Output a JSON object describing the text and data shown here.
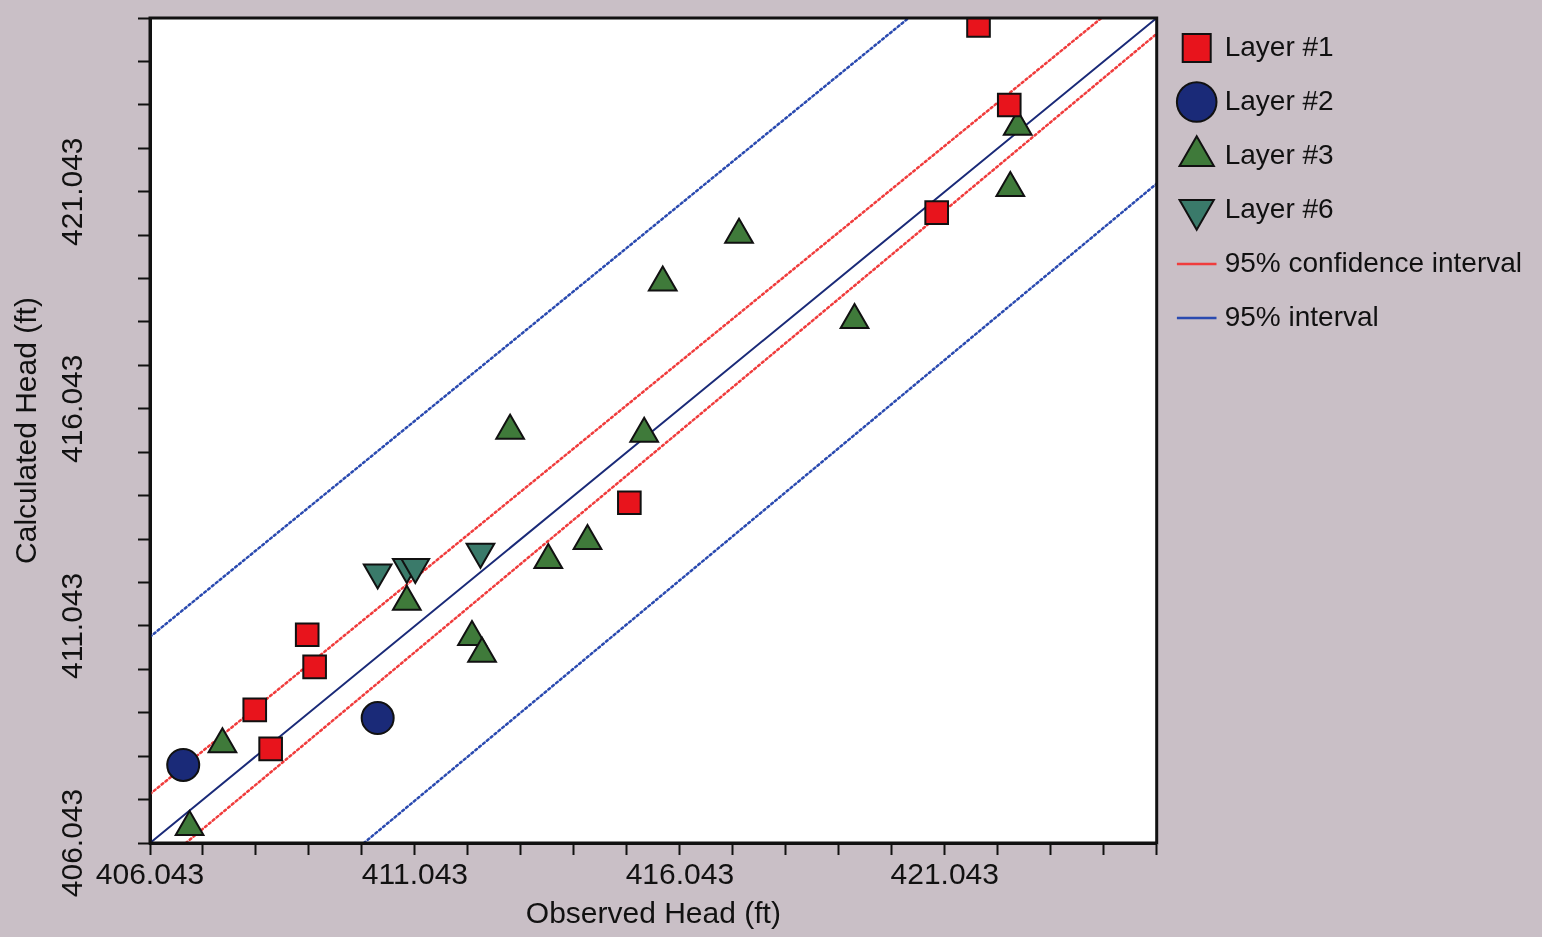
{
  "chart_data": {
    "type": "scatter",
    "xlabel": "Observed Head (ft)",
    "ylabel": "Calculated Head (ft)",
    "xlim": [
      406.043,
      425.043
    ],
    "ylim": [
      406.043,
      425.043
    ],
    "xticks": [
      406.043,
      {
        "value": 407.043,
        "label": null
      },
      {
        "value": 408.043,
        "label": null
      },
      {
        "value": 409.043,
        "label": null
      },
      {
        "value": 410.043,
        "label": null
      },
      411.043,
      {
        "value": 412.043,
        "label": null
      },
      {
        "value": 413.043,
        "label": null
      },
      {
        "value": 414.043,
        "label": null
      },
      {
        "value": 415.043,
        "label": null
      },
      416.043,
      {
        "value": 417.043,
        "label": null
      },
      {
        "value": 418.043,
        "label": null
      },
      {
        "value": 419.043,
        "label": null
      },
      {
        "value": 420.043,
        "label": null
      },
      421.043,
      {
        "value": 422.043,
        "label": null
      },
      {
        "value": 423.043,
        "label": null
      },
      {
        "value": 424.043,
        "label": null
      },
      {
        "value": 425.043,
        "label": null
      }
    ],
    "yticks": [
      406.043,
      {
        "value": 407.043,
        "label": null
      },
      {
        "value": 408.043,
        "label": null
      },
      {
        "value": 409.043,
        "label": null
      },
      {
        "value": 410.043,
        "label": null
      },
      411.043,
      {
        "value": 412.043,
        "label": null
      },
      {
        "value": 413.043,
        "label": null
      },
      {
        "value": 414.043,
        "label": null
      },
      {
        "value": 415.043,
        "label": null
      },
      416.043,
      {
        "value": 417.043,
        "label": null
      },
      {
        "value": 418.043,
        "label": null
      },
      {
        "value": 419.043,
        "label": null
      },
      {
        "value": 420.043,
        "label": null
      },
      421.043,
      {
        "value": 422.043,
        "label": null
      },
      {
        "value": 423.043,
        "label": null
      },
      {
        "value": 424.043,
        "label": null
      },
      {
        "value": 425.043,
        "label": null
      }
    ],
    "grid": false,
    "legend": "right",
    "series": [
      {
        "name": "Layer #1",
        "color": "#e8141c",
        "marker": "square",
        "x": [
          421.68,
          422.26,
          420.89,
          415.09,
          409.01,
          409.15,
          408.02,
          408.32
        ],
        "values": [
          424.87,
          423.04,
          420.56,
          413.88,
          410.84,
          410.1,
          409.11,
          408.21
        ]
      },
      {
        "name": "Layer #2",
        "color": "#1a2a78",
        "marker": "circle",
        "x": [
          406.67,
          410.34
        ],
        "values": [
          407.84,
          408.92
        ]
      },
      {
        "name": "Layer #3",
        "color": "#3f7a3a",
        "marker": "triangle",
        "x": [
          406.79,
          407.41,
          410.89,
          412.12,
          412.31,
          413.56,
          414.3,
          412.84,
          415.37,
          415.72,
          417.16,
          419.34,
          422.28,
          422.42
        ],
        "values": [
          406.41,
          408.32,
          411.6,
          410.79,
          410.4,
          412.56,
          413.0,
          415.54,
          415.47,
          418.95,
          420.05,
          418.09,
          421.13,
          422.54
        ]
      },
      {
        "name": "Layer #6",
        "color": "#3a7a6a",
        "marker": "triangle_down",
        "x": [
          410.34,
          410.89,
          411.05,
          412.28
        ],
        "values": [
          412.27,
          412.4,
          412.4,
          412.75
        ]
      },
      {
        "name": "95% confidence interval",
        "type": "line",
        "color": "#f03c3c",
        "marker": "none",
        "line_style": "dotted",
        "x": [
          406.043,
          424.0
        ],
        "values": [
          407.17,
          425.043
        ]
      },
      {
        "type": "line",
        "color": "#f03c3c",
        "marker": "none",
        "line_style": "dotted",
        "x": [
          406.72,
          425.043
        ],
        "values": [
          406.043,
          424.68
        ]
      },
      {
        "name": "95% interval",
        "type": "line",
        "color": "#2a4ab0",
        "marker": "none",
        "line_style": "dotted",
        "x": [
          406.043,
          420.36
        ],
        "values": [
          410.79,
          425.043
        ]
      },
      {
        "type": "line",
        "color": "#2a4ab0",
        "marker": "none",
        "line_style": "dotted",
        "x": [
          410.08,
          425.043
        ],
        "values": [
          406.043,
          421.23
        ]
      },
      {
        "type": "line",
        "color": "#1a2a78",
        "marker": "none",
        "line_style": "solid",
        "x": [
          406.043,
          425.043
        ],
        "values": [
          406.043,
          425.043
        ]
      }
    ]
  }
}
